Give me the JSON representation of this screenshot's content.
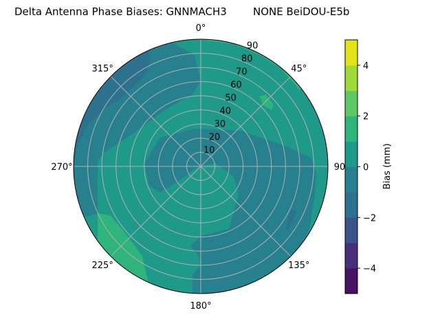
{
  "chart_data": {
    "type": "heatmap",
    "subtype": "polar-filled-contour",
    "title": "Delta Antenna Phase Biases: GNNMACH3        NONE BeiDOU-E5b",
    "angular_ticks": [
      "0°",
      "45°",
      "90",
      "135°",
      "180°",
      "225°",
      "270°",
      "315°"
    ],
    "angular_direction": "clockwise, 0° at top",
    "radial_ticks": [
      "10",
      "20",
      "30",
      "40",
      "50",
      "60",
      "70",
      "80",
      "90"
    ],
    "radial_range": [
      0,
      90
    ],
    "grid": true,
    "colorbar": {
      "label": "Bias (mm)",
      "levels": [
        -5,
        -4,
        -3,
        -2,
        -1,
        0,
        1,
        2,
        3,
        4,
        5
      ],
      "tick_labels": [
        "−4",
        "−2",
        "0",
        "2",
        "4"
      ],
      "tick_values": [
        -4,
        -2,
        0,
        2,
        4
      ],
      "colormap": "viridis",
      "band_colors": [
        "#471164",
        "#472f7d",
        "#3b528b",
        "#2c718e",
        "#27808e",
        "#1f9a8a",
        "#2fb47c",
        "#5ec962",
        "#a0da39",
        "#e2e418"
      ]
    },
    "dominant_band": [
      0,
      1
    ],
    "bands_present": [
      [
        -3,
        -2
      ],
      [
        -2,
        -1
      ],
      [
        -1,
        0
      ],
      [
        0,
        1
      ],
      [
        1,
        2
      ]
    ]
  }
}
